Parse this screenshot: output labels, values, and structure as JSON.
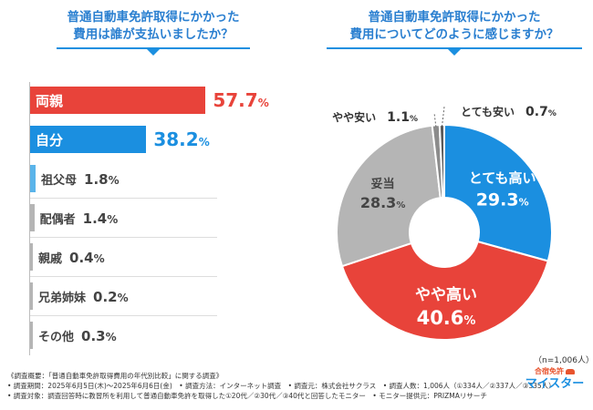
{
  "chart_data": [
    {
      "type": "bar",
      "orientation": "horizontal",
      "title": "普通自動車免許取得にかかった費用は誰が支払いましたか？",
      "unit": "%",
      "categories": [
        "両親",
        "自分",
        "祖父母",
        "配偶者",
        "親戚",
        "兄弟姉妹",
        "その他"
      ],
      "values": [
        57.7,
        38.2,
        1.8,
        1.4,
        0.4,
        0.2,
        0.3
      ],
      "value_labels": [
        "57.7",
        "38.2",
        "1.8",
        "1.4",
        "0.4",
        "0.2",
        "0.3"
      ],
      "colors": [
        "#e8433a",
        "#1b8fe0",
        "#5ab4ea",
        "#b5b5b5",
        "#b5b5b5",
        "#b5b5b5",
        "#b5b5b5"
      ],
      "label_inside": [
        true,
        true,
        false,
        false,
        false,
        false,
        false
      ],
      "xlim": [
        0,
        60
      ]
    },
    {
      "type": "pie",
      "chart_style": "donut",
      "title": "普通自動車免許取得にかかった費用についてどのように感じますか？",
      "unit": "%",
      "categories": [
        "とても高い",
        "やや高い",
        "妥当",
        "やや安い",
        "とても安い"
      ],
      "values": [
        29.3,
        40.6,
        28.3,
        1.1,
        0.7
      ],
      "value_labels": [
        "29.3",
        "40.6",
        "28.3",
        "1.1",
        "0.7"
      ],
      "colors": [
        "#1b8fe0",
        "#e8433a",
        "#b5b5b5",
        "#8c8c8c",
        "#5a5a5a"
      ]
    }
  ],
  "titles": {
    "left_line1": "普通自動車免許取得にかかった",
    "left_line2": "費用は誰が支払いましたか？",
    "right_line1": "普通自動車免許取得にかかった",
    "right_line2": "費用についてどのように感じますか？"
  },
  "sample_size": "（n=1,006人）",
  "footnotes": [
    "《調査概要：「普通自動車免許取得費用の年代別比較」に関する調査》",
    "• 調査期間：2025年6月5日(木)～2025年6月6日(金)　• 調査方法：インターネット調査　• 調査元：株式会社サクラス　• 調査人数：1,006人（①334人／②337人／③335人）",
    "• 調査対象：調査回答時に教習所を利用して普通自動車免許を取得した①20代／②30代／③40代と回答したモニター　• モニター提供元：PRIZMAリサーチ"
  ],
  "logo": {
    "line1": "合宿免許",
    "line2": "マイスター"
  }
}
